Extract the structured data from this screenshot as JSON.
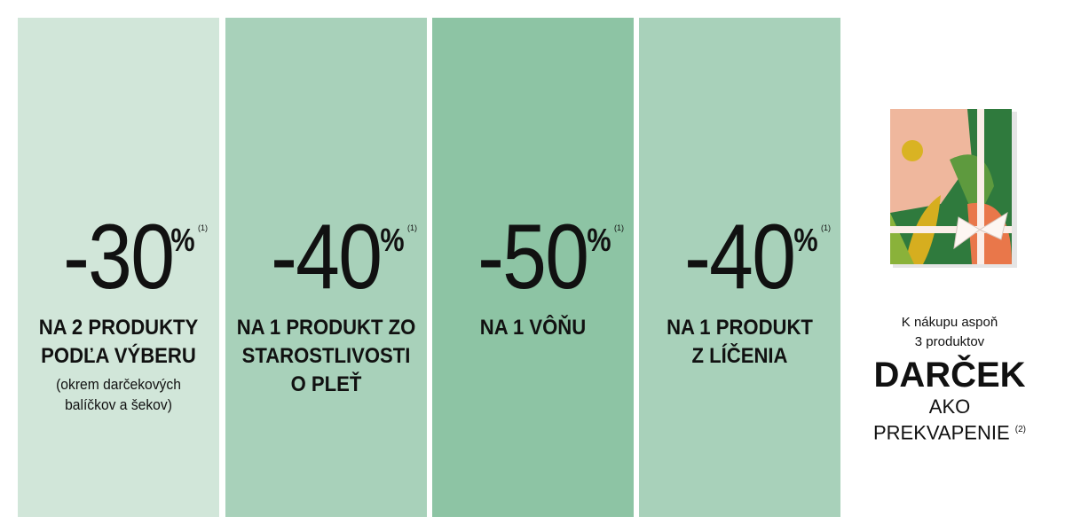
{
  "colors": {
    "panel1": "#d1e6d9",
    "panel2": "#a8d1ba",
    "panel3": "#8dc4a4",
    "panel4": "#a8d1ba"
  },
  "offers": [
    {
      "value": "-30",
      "percent": "%",
      "note": "(1)",
      "title_lines": [
        "NA 2 PRODUKTY",
        "PODĽA VÝBERU"
      ],
      "sub_lines": [
        "(okrem darčekových",
        "balíčkov a šekov)"
      ]
    },
    {
      "value": "-40",
      "percent": "%",
      "note": "(1)",
      "title_lines": [
        "NA 1 PRODUKT ZO",
        "STAROSTLIVOSTI",
        "O PLEŤ"
      ]
    },
    {
      "value": "-50",
      "percent": "%",
      "note": "(1)",
      "title_lines": [
        "NA 1 VÔŇU"
      ]
    },
    {
      "value": "-40",
      "percent": "%",
      "note": "(1)",
      "title_lines": [
        "NA 1 PRODUKT",
        "Z LÍČENIA"
      ]
    }
  ],
  "gift": {
    "image": "gift-box-icon",
    "intro_lines": [
      "K nákupu aspoň",
      "3 produktov"
    ],
    "headline": "DARČEK",
    "sub_lines": [
      "AKO",
      "PREKVAPENIE"
    ],
    "note": "(2)"
  }
}
